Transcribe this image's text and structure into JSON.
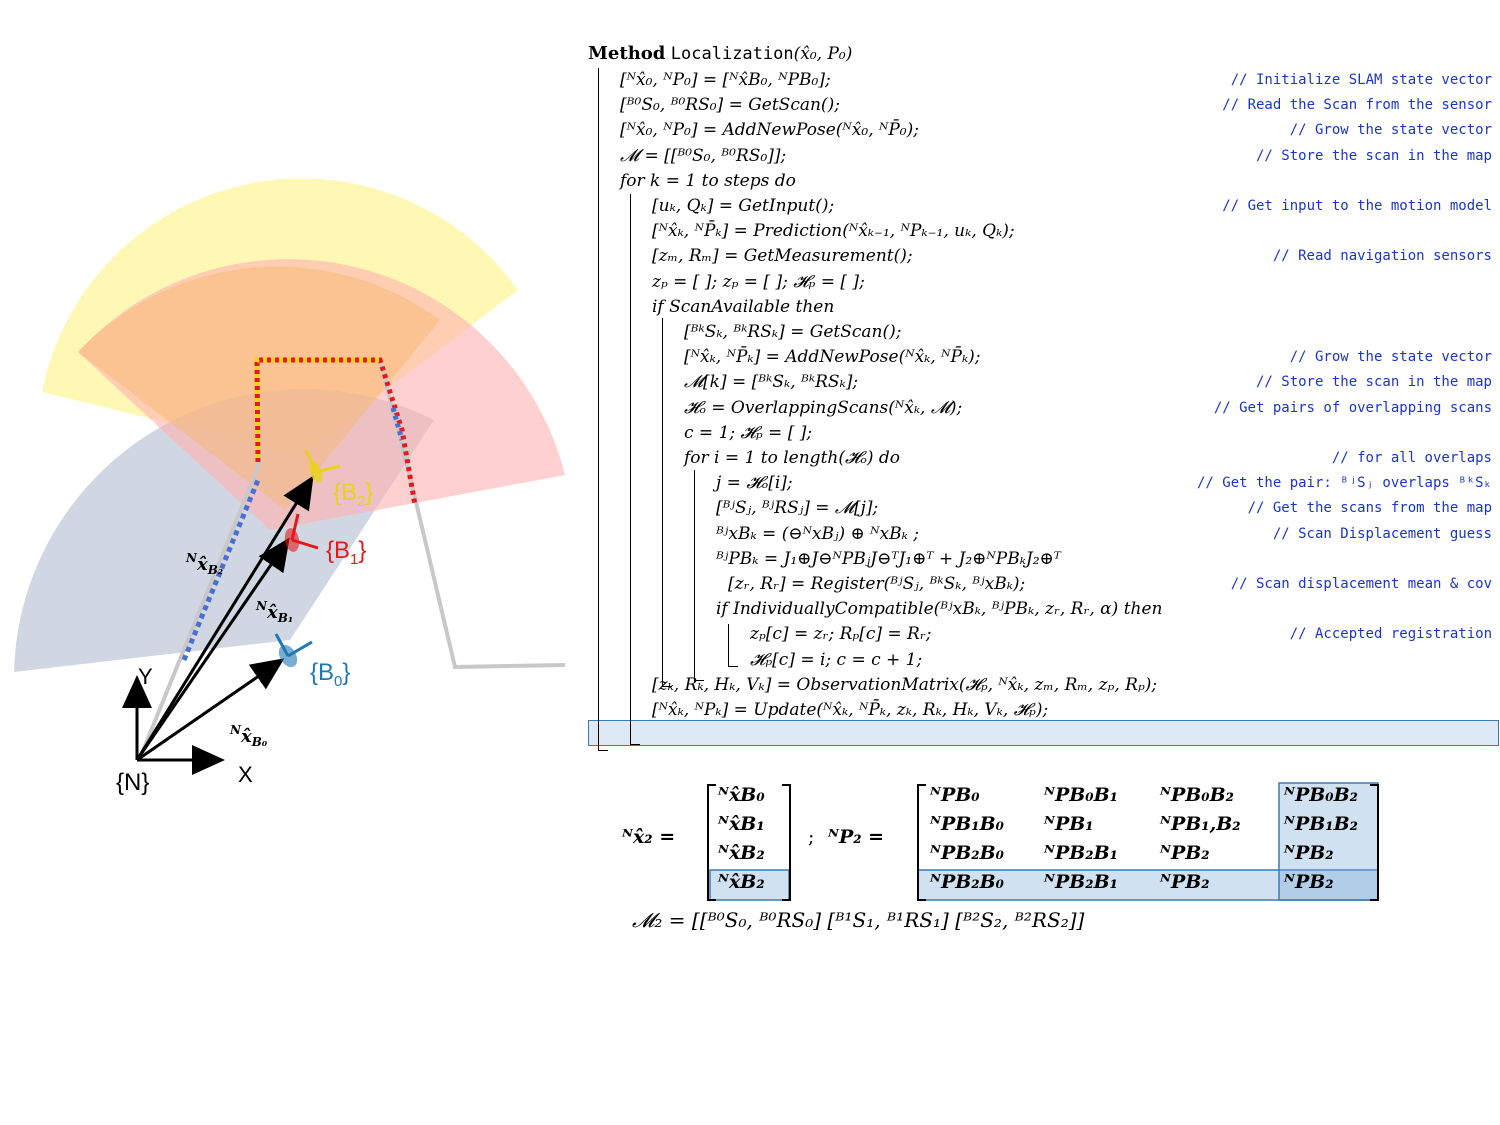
{
  "figure": {
    "labels": {
      "frame_N": "{N}",
      "axis_x": "X",
      "axis_y": "Y",
      "B0": "{B",
      "B0_sub": "0",
      "B1": "{B",
      "B1_sub": "1",
      "B2": "{B",
      "B2_sub": "2",
      "close": "}",
      "xhat_B0": "x̂",
      "xhat_B0_sub": "B₀",
      "xhat_B1": "x̂",
      "xhat_B1_sub": "B₁",
      "xhat_B2": "x̂",
      "xhat_B2_sub": "B₂",
      "sup_N": "N"
    },
    "colors": {
      "B0": "#1f77b4",
      "B1": "#e31a1c",
      "B2": "#e8d21c",
      "scan_yellow": "#fff7a8",
      "scan_orange": "#f9c98a",
      "scan_red": "#ffb4b4",
      "scan_blue": "#b8c2d2"
    }
  },
  "algorithm": {
    "header_kw": "Method",
    "header_fn": "Localization",
    "header_args": "(x̂₀, P₀)",
    "lines": [
      {
        "code": "[ᴺx̂₀, ᴺP₀] = [ᴺx̂B₀, ᴺPB₀];",
        "comment": "// Initialize SLAM state vector"
      },
      {
        "code": "[ᴮ⁰S₀, ᴮ⁰RS₀] = GetScan();",
        "comment": "// Read the Scan from the sensor"
      },
      {
        "code": "[ᴺx̂₀, ᴺP₀] = AddNewPose(ᴺx̂₀, ᴺP̄₀);",
        "comment": "// Grow the state vector"
      },
      {
        "code": "𝓜 = [[ᴮ⁰S₀, ᴮ⁰RS₀]];",
        "comment": "// Store the scan in the map"
      },
      {
        "code": "for k = 1 to steps do",
        "comment": ""
      },
      {
        "code": "[uₖ, Qₖ] = GetInput();",
        "comment": "// Get input to the motion model"
      },
      {
        "code": "[ᴺx̂ₖ, ᴺP̄ₖ] = Prediction(ᴺx̂ₖ₋₁, ᴺPₖ₋₁, uₖ, Qₖ);",
        "comment": ""
      },
      {
        "code": "[zₘ, Rₘ] = GetMeasurement();",
        "comment": "// Read navigation sensors"
      },
      {
        "code": "zₚ = [ ]; zₚ = [ ]; 𝓗ₚ = [ ];",
        "comment": ""
      },
      {
        "code": "if ScanAvailable then",
        "comment": ""
      },
      {
        "code": "[ᴮᵏSₖ, ᴮᵏRSₖ] = GetScan();",
        "comment": ""
      },
      {
        "code": "[ᴺx̂ₖ, ᴺP̄ₖ] = AddNewPose(ᴺx̂ₖ, ᴺP̄ₖ);",
        "comment": "// Grow the state vector"
      },
      {
        "code": "𝓜[k] = [ᴮᵏSₖ, ᴮᵏRSₖ];",
        "comment": "// Store the scan in the map"
      },
      {
        "code": "𝓗ₒ = OverlappingScans(ᴺx̂ₖ, 𝓜);",
        "comment": "// Get pairs of overlapping scans"
      },
      {
        "code": "c = 1; 𝓗ₚ = [ ];",
        "comment": ""
      },
      {
        "code": "for i = 1 to length(𝓗ₒ) do",
        "comment": "// for all overlaps"
      },
      {
        "code": "j = 𝓗ₒ[i];",
        "comment": "// Get the pair:  ᴮʲSⱼ overlaps ᴮᵏSₖ"
      },
      {
        "code": "[ᴮʲSⱼ, ᴮʲRSⱼ] = 𝓜[j];",
        "comment": "// Get the scans from the map"
      },
      {
        "code": "ᴮʲxBₖ = (⊖ᴺxBⱼ) ⊕ ᴺxBₖ ;",
        "comment": "// Scan Displacement guess"
      },
      {
        "code": "ᴮʲPBₖ = J₁⊕J⊖ᴺPBⱼJ⊖ᵀJ₁⊕ᵀ + J₂⊕ᴺPBₖJ₂⊕ᵀ",
        "comment": ""
      },
      {
        "code": "[zᵣ, Rᵣ] = Register(ᴮʲSⱼ, ᴮᵏSₖ, ᴮʲxBₖ);",
        "comment": "// Scan displacement mean & cov"
      },
      {
        "code": "if IndividuallyCompatible(ᴮʲxBₖ, ᴮʲPBₖ, zᵣ, Rᵣ, α) then",
        "comment": ""
      },
      {
        "code": "zₚ[c] = zᵣ;  Rₚ[c] = Rᵣ;",
        "comment": "// Accepted registration"
      },
      {
        "code": "𝓗ₚ[c] = i; c = c + 1;",
        "comment": ""
      },
      {
        "code": "[zₖ, Rₖ, Hₖ, Vₖ] = ObservationMatrix(𝓗ₚ, ᴺx̂ₖ, zₘ, Rₘ, zₚ, Rₚ);",
        "comment": ""
      },
      {
        "code": "[ᴺx̂ₖ, ᴺPₖ] = Update(ᴺx̂ₖ, ᴺP̄ₖ, zₖ, Rₖ, Hₖ, Vₖ, 𝓗ₚ);",
        "comment": ""
      }
    ]
  },
  "equations": {
    "x2_lhs": "ᴺx̂₂ =",
    "x2_entries": [
      "ᴺx̂B₀",
      "ᴺx̂B₁",
      "ᴺx̂B₂",
      "ᴺx̂B₂"
    ],
    "sep": ";",
    "P2_lhs": "ᴺP₂ =",
    "P2_rows": [
      [
        "ᴺPB₀",
        "ᴺPB₀B₁",
        "ᴺPB₀B₂",
        "ᴺPB₀B₂"
      ],
      [
        "ᴺPB₁B₀",
        "ᴺPB₁",
        "ᴺPB₁,B₂",
        "ᴺPB₁B₂"
      ],
      [
        "ᴺPB₂B₀",
        "ᴺPB₂B₁",
        "ᴺPB₂",
        "ᴺPB₂"
      ],
      [
        "ᴺPB₂B₀",
        "ᴺPB₂B₁",
        "ᴺPB₂",
        "ᴺPB₂"
      ]
    ],
    "M2": "𝓜₂ = [[ᴮ⁰S₀, ᴮ⁰RS₀] [ᴮ¹S₁, ᴮ¹RS₁] [ᴮ²S₂, ᴮ²RS₂]]"
  }
}
